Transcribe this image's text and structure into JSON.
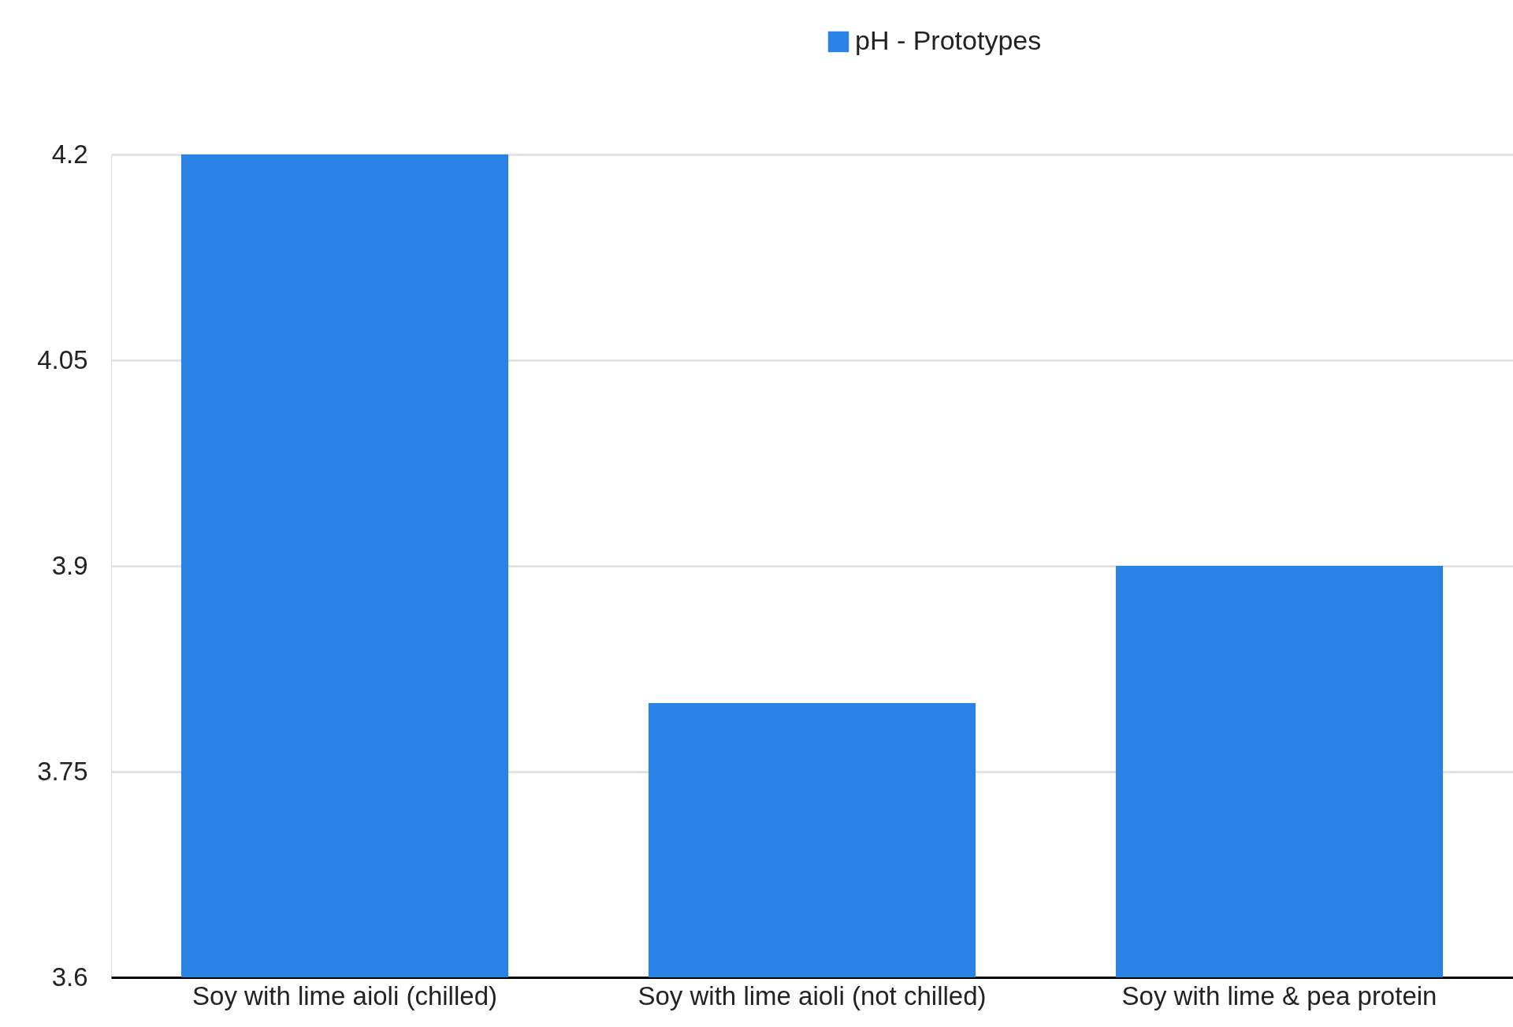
{
  "chart_data": {
    "type": "bar",
    "categories": [
      "Soy with lime aioli (chilled)",
      "Soy with lime aioli (not chilled)",
      "Soy with lime & pea protein"
    ],
    "series": [
      {
        "name": "pH - Prototypes",
        "color": "#2a82e4",
        "values": [
          4.2,
          3.8,
          3.9
        ]
      }
    ],
    "ylim": [
      3.6,
      4.2
    ],
    "yticks": [
      3.6,
      3.75,
      3.9,
      4.05,
      4.2
    ],
    "grid": "y",
    "legend": "top"
  }
}
